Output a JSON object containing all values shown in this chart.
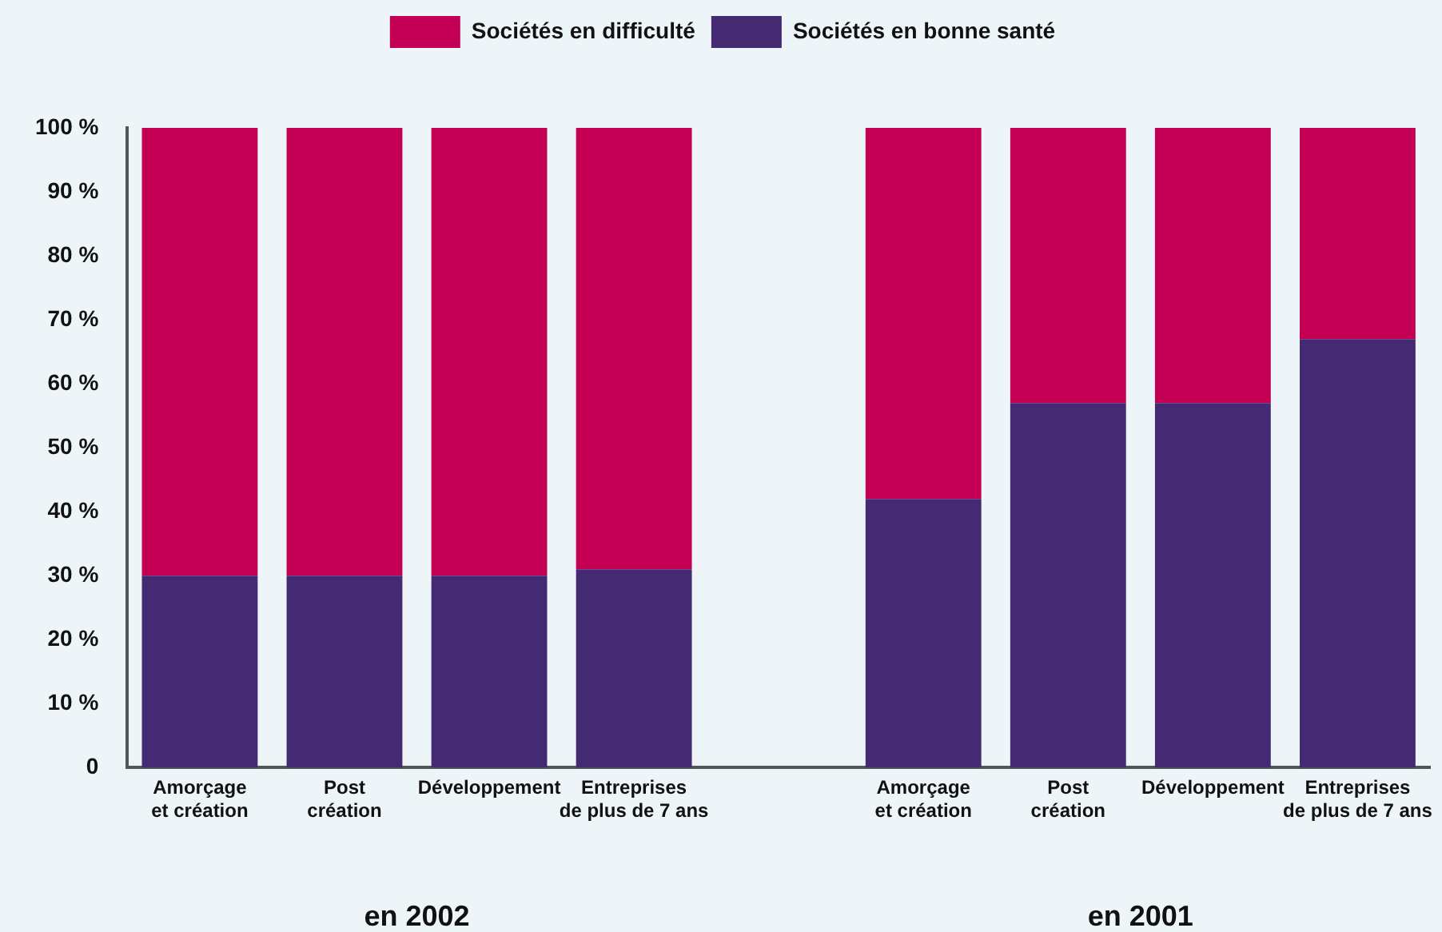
{
  "chart_data": {
    "type": "bar",
    "stacked": true,
    "categories": [
      "Amorçage et création",
      "Post création",
      "Développement",
      "Entreprises de plus de 7 ans",
      null,
      "Amorçage et création",
      "Post création",
      "Développement",
      "Entreprises de plus de 7 ans"
    ],
    "series": [
      {
        "name": "Sociétés en bonne santé",
        "color": "#442a72",
        "values": [
          30,
          30,
          30,
          31,
          null,
          42,
          57,
          57,
          67
        ]
      },
      {
        "name": "Sociétés en difficulté",
        "color": "#c40055",
        "values": [
          70,
          70,
          70,
          69,
          null,
          58,
          43,
          43,
          33
        ]
      }
    ],
    "ylim": [
      0,
      100
    ],
    "yticks": [
      {
        "value": 0,
        "label": "0"
      },
      {
        "value": 10,
        "label": "10 %"
      },
      {
        "value": 20,
        "label": "20 %"
      },
      {
        "value": 30,
        "label": "30 %"
      },
      {
        "value": 40,
        "label": "40 %"
      },
      {
        "value": 50,
        "label": "50 %"
      },
      {
        "value": 60,
        "label": "60 %"
      },
      {
        "value": 70,
        "label": "70 %"
      },
      {
        "value": 80,
        "label": "80 %"
      },
      {
        "value": 90,
        "label": "90 %"
      },
      {
        "value": 100,
        "label": "100 %"
      }
    ],
    "grid": false,
    "legend": "top",
    "annotations": [
      "en 2002",
      "en 2001"
    ]
  }
}
